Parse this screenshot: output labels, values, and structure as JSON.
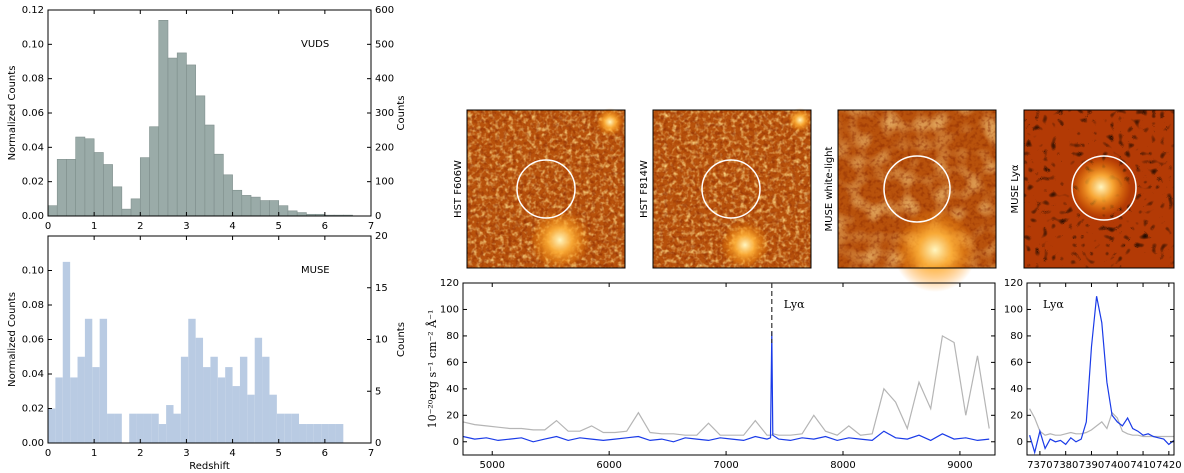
{
  "chart_data": [
    {
      "type": "histogram",
      "annotation": "VUDS",
      "ylabel": "Normalized Counts",
      "y2label": "Counts",
      "color": "#9aaba8",
      "edgecolor": "#7f8f8c",
      "xlim": [
        0,
        7
      ],
      "xticks": [
        0,
        1,
        2,
        3,
        4,
        5,
        6,
        7
      ],
      "ylim": [
        0,
        0.12
      ],
      "yticks": [
        {
          "value": 0,
          "label": "0.00"
        },
        {
          "value": 0.02,
          "label": "0.02"
        },
        {
          "value": 0.04,
          "label": "0.04"
        },
        {
          "value": 0.06,
          "label": "0.06"
        },
        {
          "value": 0.08,
          "label": "0.08"
        },
        {
          "value": 0.1,
          "label": "0.10"
        },
        {
          "value": 0.12,
          "label": "0.12"
        }
      ],
      "y2lim": [
        0,
        600
      ],
      "y2ticks": [
        0,
        100,
        200,
        300,
        400,
        500,
        600
      ],
      "bins": [
        0,
        0.2,
        0.4,
        0.6,
        0.8,
        1.0,
        1.2,
        1.4,
        1.6,
        1.8,
        2.0,
        2.2,
        2.4,
        2.6,
        2.8,
        3.0,
        3.2,
        3.4,
        3.6,
        3.8,
        4.0,
        4.2,
        4.4,
        4.6,
        4.8,
        5.0,
        5.2,
        5.4,
        5.6,
        5.8,
        6.0,
        6.2,
        6.4,
        6.6
      ],
      "values": [
        0.006,
        0.033,
        0.033,
        0.046,
        0.045,
        0.037,
        0.03,
        0.017,
        0.004,
        0.01,
        0.034,
        0.052,
        0.114,
        0.092,
        0.095,
        0.088,
        0.07,
        0.053,
        0.036,
        0.024,
        0.015,
        0.012,
        0.011,
        0.009,
        0.009,
        0.006,
        0.003,
        0.002,
        0.001,
        0.001,
        0.0005,
        0.0005,
        0.0005
      ]
    },
    {
      "type": "histogram",
      "annotation": "MUSE",
      "ylabel": "Normalized Counts",
      "y2label": "Counts",
      "xlabel": "Redshift",
      "color": "#b9cbe3",
      "xlim": [
        0,
        7
      ],
      "xticks": [
        0,
        1,
        2,
        3,
        4,
        5,
        6,
        7
      ],
      "ylim": [
        0,
        0.12
      ],
      "yticks": [
        {
          "value": 0,
          "label": "0.00"
        },
        {
          "value": 0.02,
          "label": "0.02"
        },
        {
          "value": 0.04,
          "label": "0.04"
        },
        {
          "value": 0.06,
          "label": "0.06"
        },
        {
          "value": 0.08,
          "label": "0.08"
        },
        {
          "value": 0.1,
          "label": "0.10"
        }
      ],
      "y2lim": [
        0,
        20
      ],
      "y2ticks": [
        0,
        5,
        10,
        15,
        20
      ],
      "bins": [
        0,
        0.16,
        0.32,
        0.48,
        0.64,
        0.8,
        0.96,
        1.12,
        1.28,
        1.44,
        1.6,
        1.76,
        1.92,
        2.08,
        2.24,
        2.4,
        2.56,
        2.72,
        2.88,
        3.04,
        3.2,
        3.36,
        3.52,
        3.68,
        3.84,
        4,
        4.16,
        4.32,
        4.48,
        4.64,
        4.8,
        4.96,
        5.12,
        5.28,
        5.44,
        5.6,
        5.76,
        5.92,
        6.08,
        6.24,
        6.4
      ],
      "values": [
        0.02,
        0.038,
        0.105,
        0.038,
        0.05,
        0.072,
        0.044,
        0.072,
        0.017,
        0.017,
        0,
        0.017,
        0.017,
        0.017,
        0.017,
        0.011,
        0.022,
        0.017,
        0.05,
        0.072,
        0.061,
        0.044,
        0.05,
        0.038,
        0.044,
        0.033,
        0.05,
        0.028,
        0.061,
        0.05,
        0.028,
        0.017,
        0.017,
        0.017,
        0.011,
        0.011,
        0.011,
        0.011,
        0.011,
        0.011
      ]
    },
    {
      "type": "image",
      "title": "HST F606W"
    },
    {
      "type": "image",
      "title": "HST F814W"
    },
    {
      "type": "image",
      "title": "MUSE white-light"
    },
    {
      "type": "image",
      "title": "MUSE Lyα"
    },
    {
      "type": "line",
      "ylabel": "10⁻²⁰erg s⁻¹ cm⁻² Å⁻¹",
      "annotation": {
        "text": "Lyα",
        "x": 7391
      },
      "xlim": [
        4750,
        9300
      ],
      "xticks": [
        5000,
        6000,
        7000,
        8000,
        9000
      ],
      "ylim": [
        -10,
        120
      ],
      "yticks": [
        0,
        20,
        40,
        60,
        80,
        100,
        120
      ],
      "x": [
        4750,
        4850,
        4950,
        5050,
        5150,
        5250,
        5350,
        5450,
        5550,
        5650,
        5750,
        5850,
        5950,
        6050,
        6150,
        6250,
        6350,
        6450,
        6550,
        6650,
        6750,
        6850,
        6950,
        7050,
        7150,
        7250,
        7350,
        7380,
        7391,
        7400,
        7450,
        7550,
        7650,
        7750,
        7850,
        7950,
        8050,
        8150,
        8250,
        8350,
        8450,
        8550,
        8650,
        8750,
        8850,
        8950,
        9050,
        9150,
        9250
      ],
      "series": [
        {
          "color": "#b5b5b5",
          "values": [
            15,
            13,
            12,
            11,
            10,
            10,
            9,
            9,
            16,
            8,
            8,
            12,
            7,
            7,
            8,
            22,
            7,
            6,
            6,
            5,
            5,
            14,
            5,
            5,
            5,
            16,
            5,
            5,
            5,
            6,
            5,
            5,
            6,
            20,
            8,
            5,
            12,
            5,
            6,
            40,
            30,
            10,
            45,
            25,
            80,
            75,
            20,
            65,
            10
          ]
        },
        {
          "color": "#1a3be8",
          "values": [
            4,
            2,
            3,
            1,
            2,
            3,
            0,
            2,
            4,
            1,
            3,
            2,
            1,
            2,
            3,
            4,
            1,
            2,
            0,
            3,
            2,
            1,
            3,
            2,
            1,
            4,
            2,
            3,
            83,
            5,
            2,
            1,
            3,
            2,
            4,
            1,
            3,
            2,
            1,
            8,
            3,
            2,
            5,
            1,
            6,
            2,
            3,
            1,
            2
          ]
        }
      ]
    },
    {
      "type": "line",
      "annotation": {
        "text": "Lyα"
      },
      "xlim": [
        7365,
        7422
      ],
      "xticks": [
        7370,
        7380,
        7390,
        7400,
        7410,
        7420
      ],
      "ylim": [
        -10,
        120
      ],
      "yticks": [
        0,
        20,
        40,
        60,
        80,
        100,
        120
      ],
      "x": [
        7366,
        7368,
        7370,
        7372,
        7374,
        7376,
        7378,
        7380,
        7382,
        7384,
        7386,
        7388,
        7390,
        7392,
        7394,
        7396,
        7398,
        7400,
        7402,
        7404,
        7406,
        7408,
        7410,
        7412,
        7414,
        7416,
        7418,
        7420,
        7422
      ],
      "series": [
        {
          "color": "#b5b5b5",
          "values": [
            25,
            18,
            8,
            5,
            6,
            5,
            5,
            6,
            7,
            6,
            6,
            7,
            9,
            12,
            15,
            10,
            22,
            18,
            8,
            6,
            5,
            5,
            4,
            4,
            4,
            4,
            4,
            4,
            4
          ]
        },
        {
          "color": "#1a3be8",
          "values": [
            5,
            -8,
            8,
            -5,
            2,
            0,
            1,
            -2,
            3,
            0,
            2,
            15,
            72,
            110,
            90,
            45,
            20,
            15,
            12,
            18,
            10,
            8,
            5,
            6,
            4,
            3,
            2,
            -2,
            1
          ]
        }
      ]
    }
  ]
}
